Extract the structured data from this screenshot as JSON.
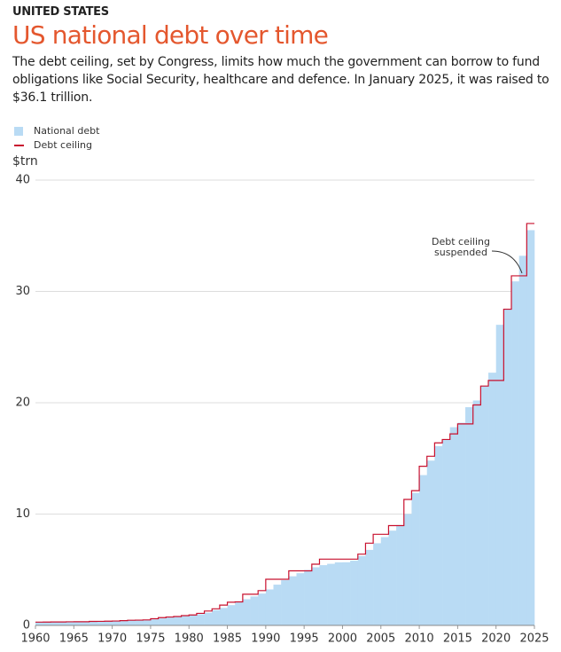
{
  "chart_data": {
    "type": "step",
    "kicker": "UNITED STATES",
    "title": "US national debt over time",
    "subtitle": "The debt ceiling, set by Congress, limits how much the government can borrow to fund obligations like Social Security, healthcare and defence. In January 2025, it was raised to $36.1 trillion.",
    "y_label": "$trn",
    "annotation": [
      "Debt ceiling",
      "suspended"
    ],
    "xlim": [
      1960,
      2025
    ],
    "xticks": [
      1960,
      1965,
      1970,
      1975,
      1980,
      1985,
      1990,
      1995,
      2000,
      2005,
      2010,
      2015,
      2020,
      2025
    ],
    "ylim": [
      0,
      40
    ],
    "yticks": [
      0,
      10,
      20,
      30,
      40
    ],
    "grid": true,
    "series": [
      {
        "name": "National debt",
        "color": "#b9dbf4",
        "style": "area",
        "x": [
          1960,
          1961,
          1962,
          1963,
          1964,
          1965,
          1966,
          1967,
          1968,
          1969,
          1970,
          1971,
          1972,
          1973,
          1974,
          1975,
          1976,
          1977,
          1978,
          1979,
          1980,
          1981,
          1982,
          1983,
          1984,
          1985,
          1986,
          1987,
          1988,
          1989,
          1990,
          1991,
          1992,
          1993,
          1994,
          1995,
          1996,
          1997,
          1998,
          1999,
          2000,
          2001,
          2002,
          2003,
          2004,
          2005,
          2006,
          2007,
          2008,
          2009,
          2010,
          2011,
          2012,
          2013,
          2014,
          2015,
          2016,
          2017,
          2018,
          2019,
          2020,
          2021,
          2022,
          2023,
          2024
        ],
        "values": [
          0.29,
          0.29,
          0.3,
          0.31,
          0.32,
          0.32,
          0.33,
          0.34,
          0.37,
          0.37,
          0.38,
          0.41,
          0.44,
          0.47,
          0.49,
          0.54,
          0.63,
          0.71,
          0.78,
          0.83,
          0.91,
          1.0,
          1.14,
          1.37,
          1.57,
          1.82,
          2.13,
          2.35,
          2.6,
          2.86,
          3.23,
          3.66,
          4.06,
          4.41,
          4.69,
          4.97,
          5.22,
          5.41,
          5.53,
          5.66,
          5.67,
          5.81,
          6.23,
          6.78,
          7.38,
          7.93,
          8.51,
          9.01,
          10.0,
          11.9,
          13.5,
          14.8,
          16.1,
          16.7,
          17.8,
          18.2,
          19.6,
          20.2,
          21.5,
          22.7,
          27.0,
          28.4,
          30.9,
          33.2,
          35.5
        ]
      },
      {
        "name": "Debt ceiling",
        "color": "#c8102e",
        "style": "line",
        "x": [
          1960,
          1961,
          1962,
          1963,
          1964,
          1965,
          1966,
          1967,
          1968,
          1969,
          1970,
          1971,
          1972,
          1973,
          1974,
          1975,
          1976,
          1977,
          1978,
          1979,
          1980,
          1981,
          1982,
          1983,
          1984,
          1985,
          1986,
          1987,
          1988,
          1989,
          1990,
          1991,
          1992,
          1993,
          1994,
          1995,
          1996,
          1997,
          1998,
          1999,
          2000,
          2001,
          2002,
          2003,
          2004,
          2005,
          2006,
          2007,
          2008,
          2009,
          2010,
          2011,
          2012,
          2013,
          2014,
          2015,
          2016,
          2017,
          2018,
          2019,
          2020,
          2021,
          2022,
          2023,
          2024
        ],
        "values": [
          0.293,
          0.298,
          0.308,
          0.309,
          0.324,
          0.328,
          0.33,
          0.358,
          0.365,
          0.377,
          0.395,
          0.43,
          0.465,
          0.475,
          0.495,
          0.595,
          0.7,
          0.752,
          0.798,
          0.879,
          0.935,
          1.079,
          1.29,
          1.49,
          1.824,
          2.079,
          2.111,
          2.8,
          2.8,
          3.123,
          4.145,
          4.145,
          4.145,
          4.9,
          4.9,
          4.9,
          5.5,
          5.95,
          5.95,
          5.95,
          5.95,
          5.95,
          6.4,
          7.384,
          8.184,
          8.184,
          8.965,
          8.965,
          11.315,
          12.104,
          14.294,
          15.194,
          16.394,
          16.7,
          17.2,
          18.1,
          18.1,
          19.8,
          21.5,
          22.0,
          22.0,
          28.4,
          31.4,
          31.4,
          36.1
        ]
      }
    ]
  }
}
